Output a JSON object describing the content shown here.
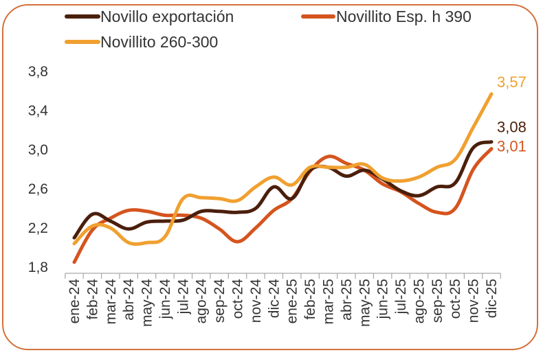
{
  "chart_data": {
    "type": "line",
    "categories": [
      "ene-24",
      "feb-24",
      "mar-24",
      "abr-24",
      "may-24",
      "jun-24",
      "jul-24",
      "ago-24",
      "sep-24",
      "oct-24",
      "nov-24",
      "dic-24",
      "ene-25",
      "feb-25",
      "mar-25",
      "abr-25",
      "may-25",
      "jun-25",
      "jul-25",
      "ago-25",
      "sep-25",
      "oct-25",
      "nov-25",
      "dic-25"
    ],
    "yticks": [
      "1,8",
      "2,2",
      "2,6",
      "3,0",
      "3,4",
      "3,8"
    ],
    "ylim": [
      1.8,
      3.8
    ],
    "legend_position": "top",
    "grid": false,
    "series": [
      {
        "name": "Novillo exportación",
        "color": "#4a1f0c",
        "values": [
          2.1,
          2.34,
          2.27,
          2.19,
          2.26,
          2.27,
          2.28,
          2.37,
          2.37,
          2.36,
          2.4,
          2.62,
          2.5,
          2.79,
          2.82,
          2.73,
          2.79,
          2.7,
          2.58,
          2.53,
          2.62,
          2.66,
          3.02,
          3.08
        ],
        "end_label": "3,08"
      },
      {
        "name": "Novillito Esp. h 390",
        "color": "#d5541e",
        "values": [
          1.85,
          2.18,
          2.3,
          2.38,
          2.37,
          2.33,
          2.33,
          2.3,
          2.19,
          2.06,
          2.2,
          2.38,
          2.5,
          2.78,
          2.93,
          2.86,
          2.79,
          2.65,
          2.57,
          2.45,
          2.36,
          2.4,
          2.8,
          3.01
        ],
        "end_label": "3,01"
      },
      {
        "name": "Novillito 260-300",
        "color": "#f0a030",
        "values": [
          2.04,
          2.22,
          2.2,
          2.05,
          2.05,
          2.11,
          2.5,
          2.51,
          2.5,
          2.48,
          2.62,
          2.72,
          2.64,
          2.82,
          2.82,
          2.82,
          2.85,
          2.71,
          2.68,
          2.72,
          2.82,
          2.9,
          3.23,
          3.57
        ],
        "end_label": "3,57"
      }
    ]
  }
}
